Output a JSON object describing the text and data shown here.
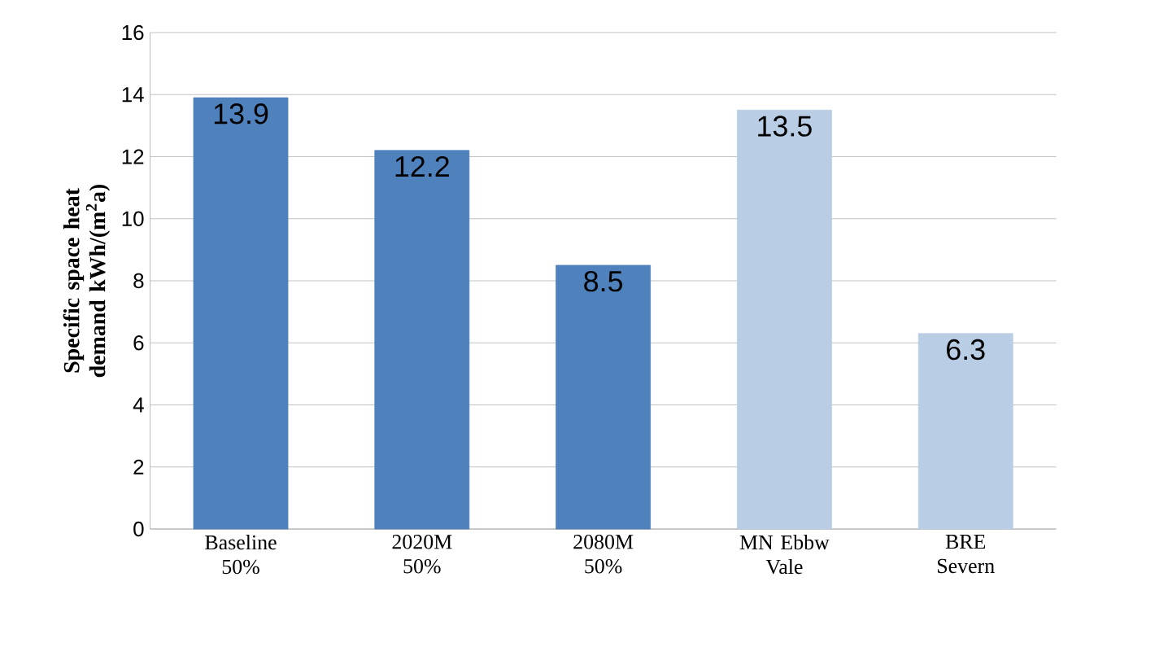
{
  "chart_data": {
    "type": "bar",
    "ylabel": "Specific space heat demand  kWh/(m$^{2}$a)",
    "categories": [
      "Baseline 50%",
      "2020M 50%",
      "2080M 50%",
      "MN Ebbw Vale",
      "BRE Severn"
    ],
    "values": [
      13.9,
      12.2,
      8.5,
      13.5,
      6.3
    ],
    "colors": [
      "#4f81bd",
      "#4f81bd",
      "#4f81bd",
      "#b9cde5",
      "#b9cde5"
    ],
    "ylim": [
      0,
      16
    ],
    "yticks": [
      0,
      2,
      4,
      6,
      8,
      10,
      12,
      14,
      16
    ],
    "grid": "y",
    "data_labels": true
  }
}
